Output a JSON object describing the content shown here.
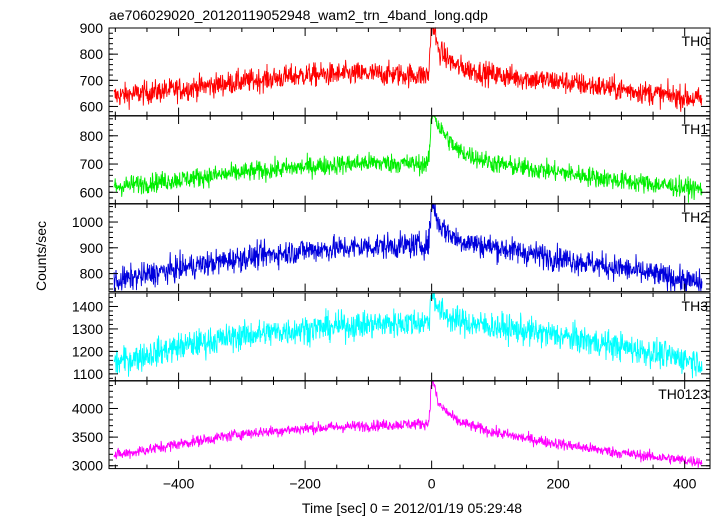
{
  "chart_data": {
    "type": "line",
    "title": "ae706029020_20120119052948_wam2_trn_4band_long.qdp",
    "xlabel": "Time [sec] 0 = 2012/01/19 05:29:48",
    "ylabel": "Counts/sec",
    "xlim": [
      -510,
      440
    ],
    "x_ticks": [
      -400,
      -200,
      0,
      200,
      400
    ],
    "x_tick_labels": [
      "−400",
      "−200",
      "0",
      "200",
      "400"
    ],
    "grid": false,
    "panels": [
      {
        "name": "TH0",
        "color": "#ff0000",
        "ylim": [
          565,
          900
        ],
        "y_ticks": [
          600,
          700,
          800,
          900
        ],
        "baseline": 640,
        "peak": 735,
        "noise": 32,
        "burst_peak": 900,
        "burst_tail": 90,
        "x": [
          -500,
          -400,
          -300,
          -200,
          -100,
          -20,
          -5,
          0,
          10,
          40,
          100,
          200,
          300,
          430
        ],
        "y": [
          640,
          665,
          695,
          720,
          725,
          720,
          718,
          900,
          770,
          730,
          715,
          695,
          665,
          625
        ]
      },
      {
        "name": "TH1",
        "color": "#00ee00",
        "ylim": [
          560,
          870
        ],
        "y_ticks": [
          600,
          700,
          800
        ],
        "baseline": 620,
        "peak": 705,
        "noise": 25,
        "burst_peak": 860,
        "burst_tail": 130,
        "x": [
          -500,
          -400,
          -300,
          -200,
          -100,
          -20,
          -5,
          0,
          10,
          40,
          100,
          200,
          300,
          430
        ],
        "y": [
          620,
          645,
          670,
          690,
          705,
          700,
          700,
          860,
          790,
          720,
          690,
          670,
          640,
          610
        ]
      },
      {
        "name": "TH2",
        "color": "#0000dd",
        "ylim": [
          730,
          1070
        ],
        "y_ticks": [
          800,
          900,
          1000
        ],
        "baseline": 770,
        "peak": 905,
        "noise": 35,
        "burst_peak": 1050,
        "burst_tail": 60,
        "x": [
          -500,
          -400,
          -300,
          -200,
          -100,
          -20,
          -5,
          0,
          10,
          40,
          100,
          200,
          300,
          430
        ],
        "y": [
          770,
          820,
          860,
          890,
          905,
          910,
          915,
          1050,
          960,
          920,
          900,
          860,
          820,
          760
        ]
      },
      {
        "name": "TH3",
        "color": "#00ffff",
        "ylim": [
          1070,
          1460
        ],
        "y_ticks": [
          1100,
          1200,
          1300,
          1400
        ],
        "baseline": 1150,
        "peak": 1325,
        "noise": 45,
        "burst_peak": 1450,
        "burst_tail": 40,
        "x": [
          -500,
          -400,
          -300,
          -200,
          -100,
          -20,
          -5,
          0,
          10,
          40,
          100,
          200,
          300,
          430
        ],
        "y": [
          1150,
          1220,
          1270,
          1300,
          1320,
          1330,
          1330,
          1450,
          1360,
          1330,
          1310,
          1270,
          1220,
          1150
        ]
      },
      {
        "name": "TH0123",
        "color": "#ff00ff",
        "ylim": [
          2950,
          4480
        ],
        "y_ticks": [
          3000,
          3500,
          4000
        ],
        "baseline": 3180,
        "peak": 3740,
        "noise": 70,
        "burst_peak": 4400,
        "burst_tail": 100,
        "x": [
          -500,
          -400,
          -300,
          -200,
          -100,
          -20,
          -5,
          0,
          10,
          40,
          100,
          200,
          300,
          430
        ],
        "y": [
          3180,
          3380,
          3560,
          3650,
          3700,
          3730,
          3740,
          4400,
          3900,
          3680,
          3550,
          3380,
          3220,
          3060
        ]
      }
    ]
  }
}
